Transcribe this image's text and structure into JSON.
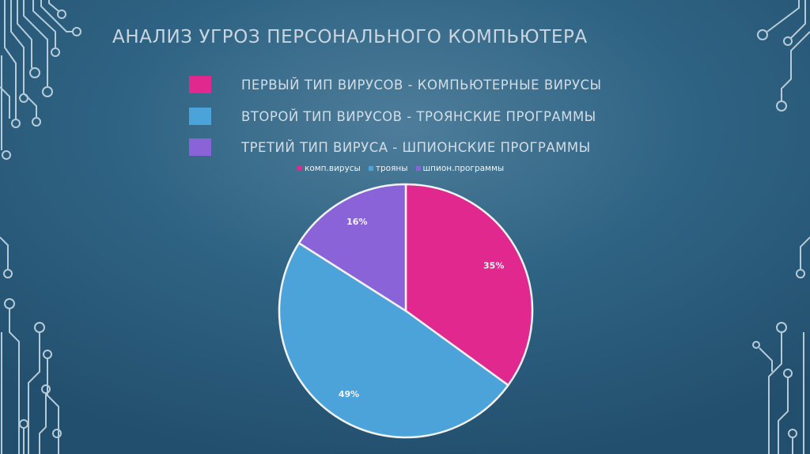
{
  "slide": {
    "title": "АНАЛИЗ УГРОЗ ПЕРСОНАЛЬНОГО КОМПЬЮТЕРА",
    "legend_rows": [
      {
        "label": "ПЕРВЫЙ ТИП ВИРУСОВ - КОМПЬЮТЕРНЫЕ ВИРУСЫ",
        "color": "#e0288f"
      },
      {
        "label": "ВТОРОЙ ТИП ВИРУСОВ - ТРОЯНСКИЕ ПРОГРАММЫ",
        "color": "#4ba3d9"
      },
      {
        "label": "ТРЕТИЙ ТИП ВИРУСА - ШПИОНСКИЕ ПРОГРАММЫ",
        "color": "#8b63d9"
      }
    ]
  },
  "chart_data": {
    "type": "pie",
    "categories": [
      "комп.вирусы",
      "трояны",
      "шпион.программы"
    ],
    "values": [
      35,
      49,
      16
    ],
    "data_labels": [
      "35%",
      "49%",
      "16%"
    ],
    "colors": [
      "#e0288f",
      "#4ba3d9",
      "#8b63d9"
    ],
    "legend_position": "top",
    "start_angle": "12 o'clock, clockwise"
  }
}
